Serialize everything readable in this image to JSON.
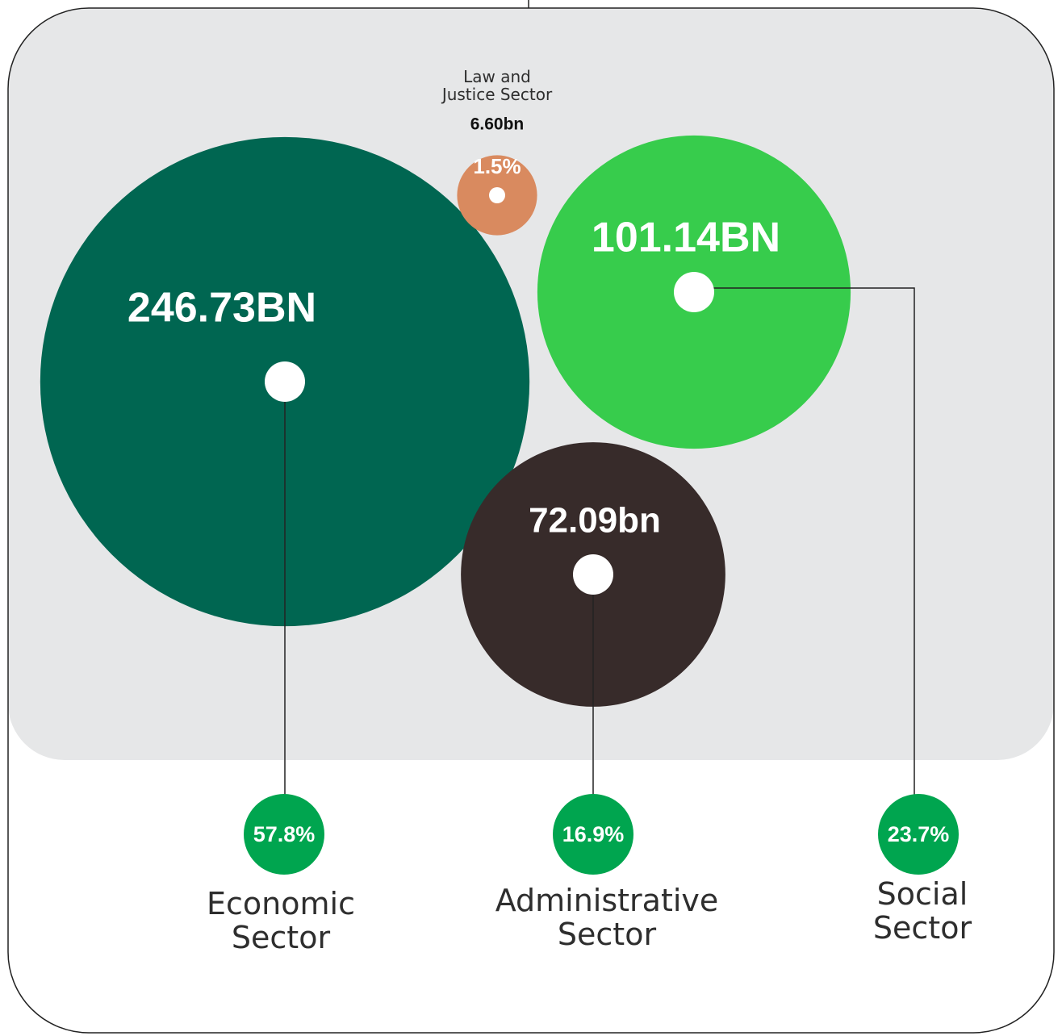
{
  "chart_data": {
    "type": "bubble",
    "categories": [
      "Economic Sector",
      "Social Sector",
      "Administrative Sector",
      "Law and Justice Sector"
    ],
    "values": [
      246.73,
      101.14,
      72.09,
      6.6
    ],
    "value_labels": [
      "246.73BN",
      "101.14BN",
      "72.09bn",
      "6.60bn"
    ],
    "shares": [
      57.8,
      23.7,
      16.9,
      1.5
    ],
    "share_labels": [
      "57.8%",
      "23.7%",
      "16.9%",
      "1.5%"
    ],
    "colors": [
      "#006651",
      "#37cc4c",
      "#372b2a",
      "#d98a5f"
    ],
    "share_color": "#00a54f"
  }
}
